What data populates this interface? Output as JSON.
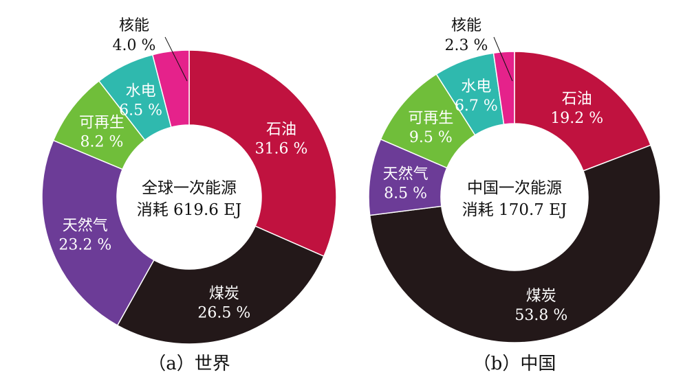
{
  "chart_data": [
    {
      "type": "pie",
      "variant": "donut",
      "caption": "（a）世界",
      "center_text": [
        "全球一次能源",
        "消耗 619.6 EJ"
      ],
      "slices": [
        {
          "name": "石油",
          "value": 31.6,
          "label": "31.6 %",
          "color": "#C0123F",
          "text_color": "#ffffff"
        },
        {
          "name": "煤炭",
          "value": 26.5,
          "label": "26.5 %",
          "color": "#231819",
          "text_color": "#ffffff"
        },
        {
          "name": "天然气",
          "value": 23.2,
          "label": "23.2 %",
          "color": "#6C3C97",
          "text_color": "#ffffff"
        },
        {
          "name": "可再生",
          "value": 8.2,
          "label": "8.2 %",
          "color": "#70BE3A",
          "text_color": "#ffffff"
        },
        {
          "name": "水电",
          "value": 6.5,
          "label": "6.5 %",
          "color": "#2FB9AE",
          "text_color": "#ffffff"
        },
        {
          "name": "核能",
          "value": 4.0,
          "label": "4.0 %",
          "color": "#E5228B",
          "text_color": "#111111",
          "external": true
        }
      ]
    },
    {
      "type": "pie",
      "variant": "donut",
      "caption": "（b）中国",
      "center_text": [
        "中国一次能源",
        "消耗 170.7 EJ"
      ],
      "slices": [
        {
          "name": "石油",
          "value": 19.2,
          "label": "19.2 %",
          "color": "#C0123F",
          "text_color": "#ffffff"
        },
        {
          "name": "煤炭",
          "value": 53.8,
          "label": "53.8 %",
          "color": "#231819",
          "text_color": "#ffffff"
        },
        {
          "name": "天然气",
          "value": 8.5,
          "label": "8.5 %",
          "color": "#6C3C97",
          "text_color": "#ffffff"
        },
        {
          "name": "可再生",
          "value": 9.5,
          "label": "9.5 %",
          "color": "#70BE3A",
          "text_color": "#ffffff"
        },
        {
          "name": "水电",
          "value": 6.7,
          "label": "6.7 %",
          "color": "#2FB9AE",
          "text_color": "#ffffff"
        },
        {
          "name": "核能",
          "value": 2.3,
          "label": "2.3 %",
          "color": "#E5228B",
          "text_color": "#111111",
          "external": true
        }
      ]
    }
  ]
}
